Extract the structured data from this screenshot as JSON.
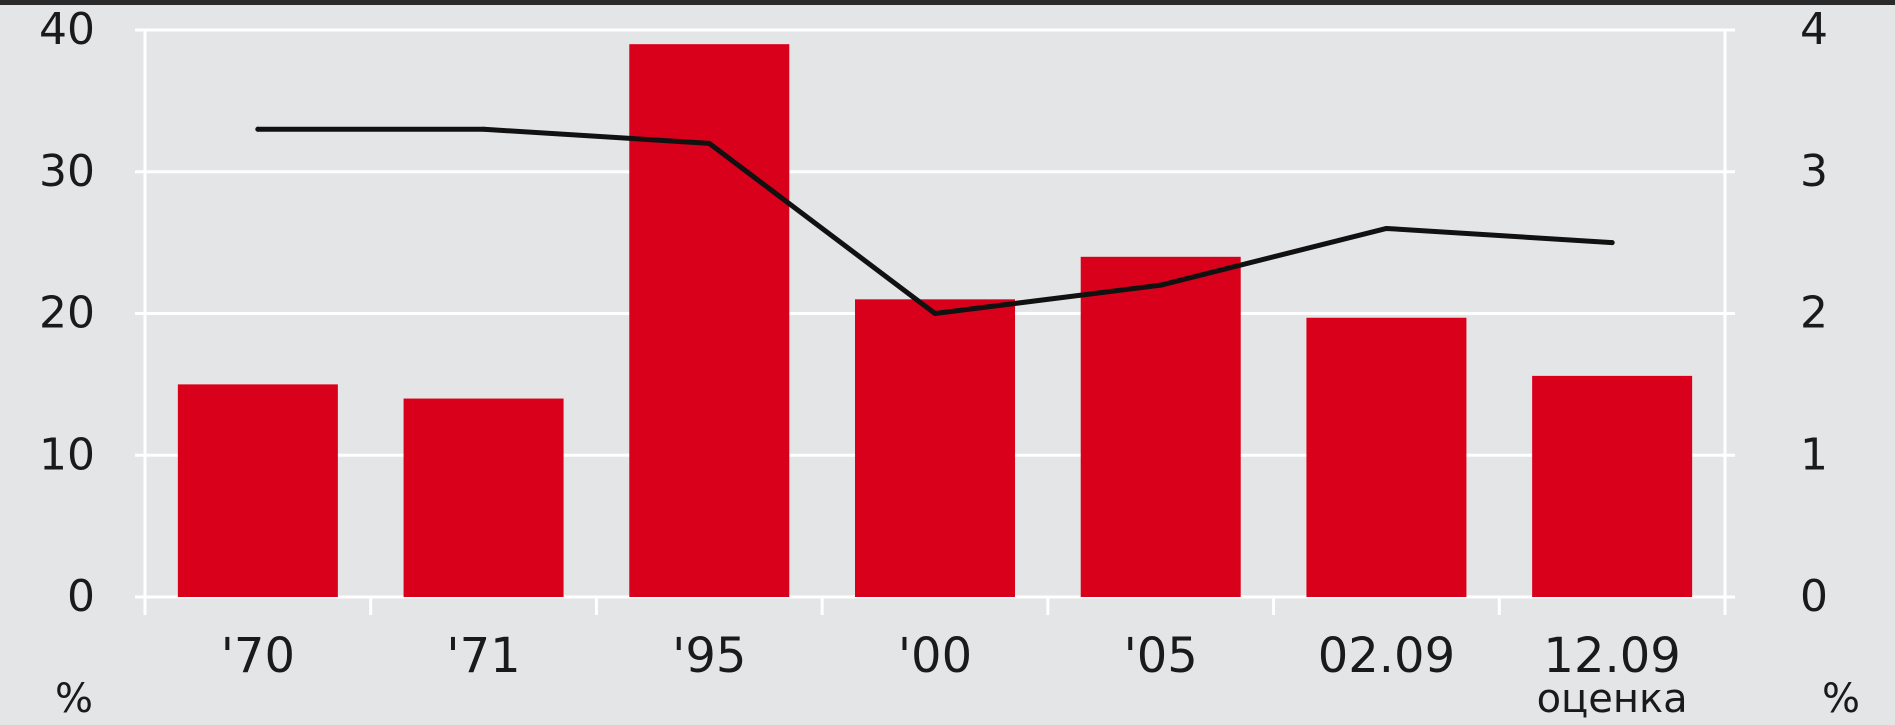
{
  "chart_data": {
    "type": "bar",
    "categories": [
      "'70",
      "'71",
      "'95",
      "'00",
      "'05",
      "02.09",
      "12.09"
    ],
    "category_sublabels": [
      "",
      "",
      "",
      "",
      "",
      "",
      "оценка"
    ],
    "series": [
      {
        "values": [
          15,
          14,
          39,
          21,
          24,
          19.7,
          15.6
        ],
        "type": "bar",
        "axis": "left",
        "color": "#d9001b"
      },
      {
        "values": [
          3.3,
          3.3,
          3.2,
          2.0,
          2.2,
          2.6,
          2.5
        ],
        "type": "line",
        "axis": "right",
        "color": "#111111"
      }
    ],
    "y_left": {
      "ylim": [
        0,
        40
      ],
      "ticks": [
        0,
        10,
        20,
        30,
        40
      ],
      "unit": "%"
    },
    "y_right": {
      "ylim": [
        0,
        4
      ],
      "ticks": [
        0,
        1,
        2,
        3,
        4
      ],
      "unit": "%"
    },
    "grid": true
  }
}
